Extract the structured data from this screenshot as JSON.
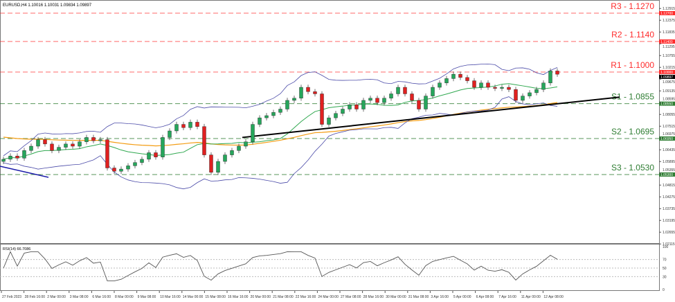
{
  "header": {
    "symbol_line": "EURUSD,H4  1.10016 1.10031 1.09834 1.09897"
  },
  "rsi": {
    "label": "RSI(14) 66.7086",
    "levels": [
      "100",
      "70",
      "50",
      "30",
      "0"
    ]
  },
  "colors": {
    "bull": "#26a65b",
    "bear": "#e02020",
    "resistance": "#ff2a2a",
    "support": "#2e7d32",
    "bands": "#4a4aa8",
    "ma_fast": "#2fa84f",
    "ma_slow": "#f39c12",
    "trend": "#000000"
  },
  "chart_data": {
    "type": "candlestick",
    "title": "EURUSD,H4",
    "ylim": [
      1.0185,
      1.131
    ],
    "price_ticks": [
      "1.12915",
      "1.12375",
      "1.11835",
      "1.11295",
      "1.10755",
      "1.10215",
      "1.09675",
      "1.09135",
      "1.08595",
      "1.08055",
      "1.07515",
      "1.06975",
      "1.06435",
      "1.05895",
      "1.05355",
      "1.04815",
      "1.04275",
      "1.03735",
      "1.03195",
      "1.02655",
      "1.02115"
    ],
    "time_labels": [
      "27 Feb 2023",
      "28 Feb 16:00",
      "2 Mar 00:00",
      "3 Mar 08:00",
      "6 Mar 16:00",
      "8 Mar 00:00",
      "9 Mar 08:00",
      "10 Mar 16:00",
      "14 Mar 00:00",
      "15 Mar 08:00",
      "16 Mar 16:00",
      "20 Mar 00:00",
      "21 Mar 08:00",
      "22 Mar 16:00",
      "24 Mar 00:00",
      "27 Mar 08:00",
      "28 Mar 16:00",
      "30 Mar 00:00",
      "31 Mar 08:00",
      "3 Apr 16:00",
      "5 Apr 00:00",
      "6 Apr 08:00",
      "7 Apr 16:00",
      "11 Apr 00:00",
      "12 Apr 08:00"
    ],
    "closes": [
      1.06,
      1.0615,
      1.0605,
      1.064,
      1.066,
      1.069,
      1.067,
      1.064,
      1.0655,
      1.067,
      1.066,
      1.068,
      1.07,
      1.0685,
      1.069,
      1.056,
      1.0545,
      1.0555,
      1.057,
      1.0585,
      1.06,
      1.063,
      1.061,
      1.07,
      1.073,
      1.076,
      1.0745,
      1.077,
      1.075,
      1.062,
      1.054,
      1.059,
      1.062,
      1.064,
      1.066,
      1.068,
      1.076,
      1.079,
      1.08,
      1.0815,
      1.083,
      1.087,
      1.088,
      1.093,
      1.091,
      1.09,
      1.076,
      1.079,
      1.081,
      1.083,
      1.085,
      1.083,
      1.087,
      1.088,
      1.086,
      1.088,
      1.09,
      1.093,
      1.09,
      1.087,
      1.083,
      1.089,
      1.093,
      1.095,
      1.097,
      1.099,
      1.0975,
      1.096,
      1.093,
      1.095,
      1.093,
      1.0925,
      1.093,
      1.092,
      1.087,
      1.089,
      1.0905,
      1.092,
      1.095,
      1.1005,
      1.099
    ],
    "levels": [
      {
        "label": "R3 - 1.1270",
        "price": 1.127,
        "tag": "1.12700",
        "kind": "resistance"
      },
      {
        "label": "R2 - 1.1140",
        "price": 1.114,
        "tag": "1.11400",
        "kind": "resistance"
      },
      {
        "label": "R1 - 1.1000",
        "price": 1.1,
        "tag": "1.10000",
        "kind": "resistance"
      },
      {
        "label": "S1 - 1.0855",
        "price": 1.0855,
        "tag": "1.08550",
        "kind": "support"
      },
      {
        "label": "S2 - 1.0695",
        "price": 1.0695,
        "tag": "1.06950",
        "kind": "support"
      },
      {
        "label": "S3 - 1.0530",
        "price": 1.053,
        "tag": "1.05300",
        "kind": "support"
      }
    ],
    "current_price": {
      "value": 1.09897,
      "tag": "1.09897"
    },
    "trendline": {
      "from_price": 1.07,
      "to_price": 1.0885
    }
  }
}
